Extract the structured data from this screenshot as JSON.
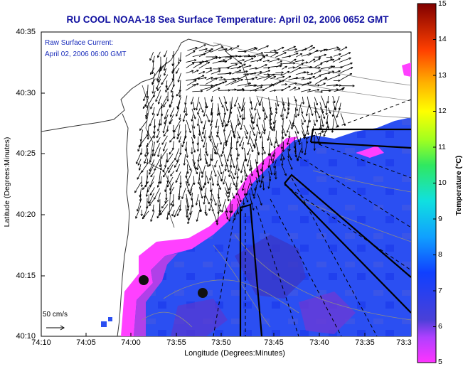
{
  "title": "RU COOL  NOAA-18  Sea Surface Temperature:  April 02, 2006 0652 GMT",
  "annotation": {
    "line1": "Raw Surface Current:",
    "line2": "April 02, 2006 06:00 GMT"
  },
  "scale_label": "50 cm/s",
  "axes": {
    "xlabel": "Longitude (Degrees:Minutes)",
    "ylabel": "Latitude (Degrees:Minutes)",
    "xticks": [
      "74:10",
      "74:05",
      "74:00",
      "73:55",
      "73:50",
      "73:45",
      "73:40",
      "73:35",
      "73:3"
    ],
    "yticks": [
      "40:35",
      "40:30",
      "40:25",
      "40:20",
      "40:15",
      "40:10"
    ]
  },
  "colorbar": {
    "label": "Temperature (°C)",
    "min": 5,
    "max": 15,
    "ticks": [
      "15",
      "14",
      "13",
      "12",
      "11",
      "10",
      "9",
      "8",
      "7",
      "6",
      "5"
    ]
  },
  "colors": {
    "title": "#1010a0",
    "annotation": "#1a2dbb",
    "ocean_blue": "#2a4ff0",
    "ocean_dark": "#3030c8",
    "nearshore_magenta": "#ff3dff",
    "nearshore_purple": "#9a3cd6"
  }
}
